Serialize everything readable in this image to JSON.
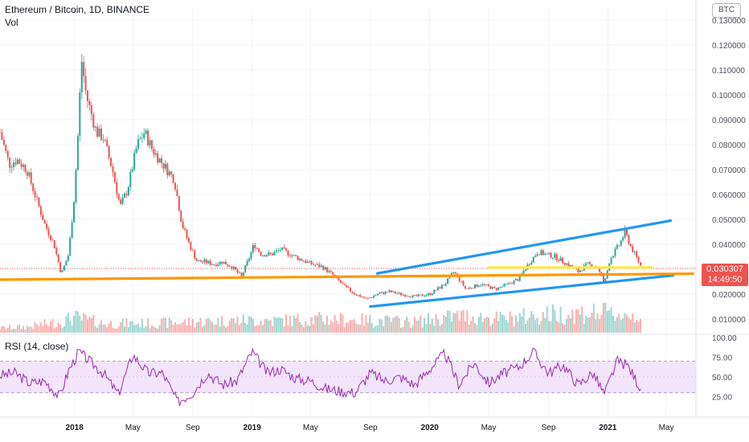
{
  "header": {
    "title": "Ethereum / Bitcoin, 1D, BINANCE",
    "volume_label": "Vol",
    "currency_badge": "BTC"
  },
  "rsi": {
    "label": "RSI (14, close)",
    "ticks": [
      "100.00",
      "75.00",
      "50.00",
      "25.00"
    ],
    "band_upper": 70,
    "band_lower": 30,
    "line_color": "#9c27b0",
    "band_color": "#f3e5fb"
  },
  "last_price": {
    "value": "0.030307",
    "countdown": "14:49:50",
    "color": "#ef5350"
  },
  "colors": {
    "up": "#26a69a",
    "down": "#ef5350",
    "channel": "#2196f3",
    "support": "#ff9800",
    "resistance": "#ffeb3b"
  },
  "chart_data": {
    "type": "candlestick",
    "price_ticks": [
      "0.010000",
      "0.020000",
      "0.030000",
      "0.040000",
      "0.050000",
      "0.060000",
      "0.070000",
      "0.080000",
      "0.090000",
      "0.100000",
      "0.110000",
      "0.120000",
      "0.130000"
    ],
    "price_range": [
      0.0045,
      0.1355
    ],
    "time_labels": [
      "2018",
      "May",
      "Sep",
      "2019",
      "May",
      "Sep",
      "2020",
      "May",
      "Sep",
      "2021",
      "May"
    ],
    "time_range": [
      "2017-08-01",
      "2021-07-01"
    ],
    "close_path": [
      [
        "2017-08-01",
        0.085
      ],
      [
        "2017-08-20",
        0.072
      ],
      [
        "2017-09-05",
        0.074
      ],
      [
        "2017-09-25",
        0.07
      ],
      [
        "2017-10-15",
        0.058
      ],
      [
        "2017-11-01",
        0.048
      ],
      [
        "2017-11-20",
        0.04
      ],
      [
        "2017-12-05",
        0.028
      ],
      [
        "2017-12-20",
        0.036
      ],
      [
        "2018-01-01",
        0.06
      ],
      [
        "2018-01-10",
        0.09
      ],
      [
        "2018-01-15",
        0.115
      ],
      [
        "2018-01-25",
        0.1
      ],
      [
        "2018-02-15",
        0.085
      ],
      [
        "2018-03-01",
        0.083
      ],
      [
        "2018-03-20",
        0.07
      ],
      [
        "2018-04-05",
        0.055
      ],
      [
        "2018-04-20",
        0.062
      ],
      [
        "2018-05-10",
        0.08
      ],
      [
        "2018-05-25",
        0.085
      ],
      [
        "2018-06-10",
        0.078
      ],
      [
        "2018-06-25",
        0.074
      ],
      [
        "2018-07-10",
        0.07
      ],
      [
        "2018-07-25",
        0.066
      ],
      [
        "2018-08-10",
        0.048
      ],
      [
        "2018-08-25",
        0.04
      ],
      [
        "2018-09-10",
        0.033
      ],
      [
        "2018-09-25",
        0.033
      ],
      [
        "2018-10-15",
        0.032
      ],
      [
        "2018-11-01",
        0.033
      ],
      [
        "2018-11-20",
        0.031
      ],
      [
        "2018-12-10",
        0.027
      ],
      [
        "2018-12-25",
        0.034
      ],
      [
        "2019-01-05",
        0.04
      ],
      [
        "2019-01-20",
        0.036
      ],
      [
        "2019-02-10",
        0.036
      ],
      [
        "2019-03-01",
        0.038
      ],
      [
        "2019-03-20",
        0.036
      ],
      [
        "2019-04-10",
        0.034
      ],
      [
        "2019-05-05",
        0.032
      ],
      [
        "2019-05-25",
        0.031
      ],
      [
        "2019-06-20",
        0.027
      ],
      [
        "2019-07-10",
        0.023
      ],
      [
        "2019-08-01",
        0.02
      ],
      [
        "2019-08-25",
        0.018
      ],
      [
        "2019-09-15",
        0.02
      ],
      [
        "2019-10-10",
        0.021
      ],
      [
        "2019-11-01",
        0.02
      ],
      [
        "2019-12-01",
        0.019
      ],
      [
        "2020-01-01",
        0.02
      ],
      [
        "2020-02-01",
        0.024
      ],
      [
        "2020-02-20",
        0.029
      ],
      [
        "2020-03-15",
        0.022
      ],
      [
        "2020-04-15",
        0.024
      ],
      [
        "2020-05-15",
        0.022
      ],
      [
        "2020-06-10",
        0.024
      ],
      [
        "2020-07-01",
        0.026
      ],
      [
        "2020-07-25",
        0.033
      ],
      [
        "2020-08-10",
        0.037
      ],
      [
        "2020-08-25",
        0.036
      ],
      [
        "2020-09-15",
        0.035
      ],
      [
        "2020-10-10",
        0.032
      ],
      [
        "2020-11-01",
        0.029
      ],
      [
        "2020-11-20",
        0.032
      ],
      [
        "2020-12-10",
        0.031
      ],
      [
        "2020-12-25",
        0.024
      ],
      [
        "2021-01-05",
        0.034
      ],
      [
        "2021-01-25",
        0.04
      ],
      [
        "2021-02-05",
        0.045
      ],
      [
        "2021-02-15",
        0.04
      ],
      [
        "2021-02-25",
        0.036
      ],
      [
        "2021-03-05",
        0.033
      ],
      [
        "2021-03-12",
        0.030307
      ]
    ],
    "volume": [
      [
        "2017-08-01",
        0.15
      ],
      [
        "2017-10-01",
        0.2
      ],
      [
        "2017-12-01",
        0.35
      ],
      [
        "2018-01-01",
        0.5
      ],
      [
        "2018-03-01",
        0.3
      ],
      [
        "2018-06-01",
        0.3
      ],
      [
        "2018-09-01",
        0.35
      ],
      [
        "2018-12-01",
        0.4
      ],
      [
        "2019-03-01",
        0.4
      ],
      [
        "2019-06-01",
        0.45
      ],
      [
        "2019-09-01",
        0.4
      ],
      [
        "2019-12-01",
        0.35
      ],
      [
        "2020-03-01",
        0.55
      ],
      [
        "2020-06-01",
        0.45
      ],
      [
        "2020-09-01",
        0.6
      ],
      [
        "2020-12-01",
        0.65
      ],
      [
        "2021-03-12",
        0.55
      ]
    ],
    "rsi_path": [
      [
        "2017-08-01",
        52
      ],
      [
        "2017-09-01",
        55
      ],
      [
        "2017-10-01",
        42
      ],
      [
        "2017-11-01",
        45
      ],
      [
        "2017-12-01",
        25
      ],
      [
        "2017-12-20",
        58
      ],
      [
        "2018-01-10",
        82
      ],
      [
        "2018-02-01",
        70
      ],
      [
        "2018-03-01",
        55
      ],
      [
        "2018-04-01",
        28
      ],
      [
        "2018-05-01",
        78
      ],
      [
        "2018-06-01",
        55
      ],
      [
        "2018-07-01",
        55
      ],
      [
        "2018-08-01",
        18
      ],
      [
        "2018-09-01",
        30
      ],
      [
        "2018-10-01",
        55
      ],
      [
        "2018-11-01",
        40
      ],
      [
        "2018-12-01",
        45
      ],
      [
        "2019-01-01",
        82
      ],
      [
        "2019-02-01",
        55
      ],
      [
        "2019-03-01",
        60
      ],
      [
        "2019-04-01",
        48
      ],
      [
        "2019-05-01",
        45
      ],
      [
        "2019-06-01",
        35
      ],
      [
        "2019-07-01",
        32
      ],
      [
        "2019-08-01",
        30
      ],
      [
        "2019-09-01",
        55
      ],
      [
        "2019-10-01",
        45
      ],
      [
        "2019-11-01",
        50
      ],
      [
        "2019-12-01",
        40
      ],
      [
        "2020-01-01",
        60
      ],
      [
        "2020-02-01",
        80
      ],
      [
        "2020-03-01",
        40
      ],
      [
        "2020-04-01",
        68
      ],
      [
        "2020-05-01",
        42
      ],
      [
        "2020-06-01",
        55
      ],
      [
        "2020-07-01",
        62
      ],
      [
        "2020-08-01",
        82
      ],
      [
        "2020-09-01",
        55
      ],
      [
        "2020-10-01",
        65
      ],
      [
        "2020-11-01",
        40
      ],
      [
        "2020-12-01",
        55
      ],
      [
        "2020-12-25",
        28
      ],
      [
        "2021-01-20",
        70
      ],
      [
        "2021-02-10",
        65
      ],
      [
        "2021-03-12",
        33
      ]
    ],
    "drawings": [
      {
        "type": "trendline",
        "color": "#2196f3",
        "from": [
          "2019-09-01",
          0.015
        ],
        "to": [
          "2021-05-15",
          0.0275
        ]
      },
      {
        "type": "trendline",
        "color": "#2196f3",
        "from": [
          "2019-09-15",
          0.0283
        ],
        "to": [
          "2021-05-10",
          0.0495
        ]
      },
      {
        "type": "trendline",
        "color": "#ff9800",
        "from": [
          "2017-08-01",
          0.0258
        ],
        "to": [
          "2021-06-25",
          0.0282
        ]
      },
      {
        "type": "trendline",
        "color": "#ffeb3b",
        "from": [
          "2020-05-01",
          0.0307
        ],
        "to": [
          "2021-04-01",
          0.0307
        ]
      }
    ]
  }
}
